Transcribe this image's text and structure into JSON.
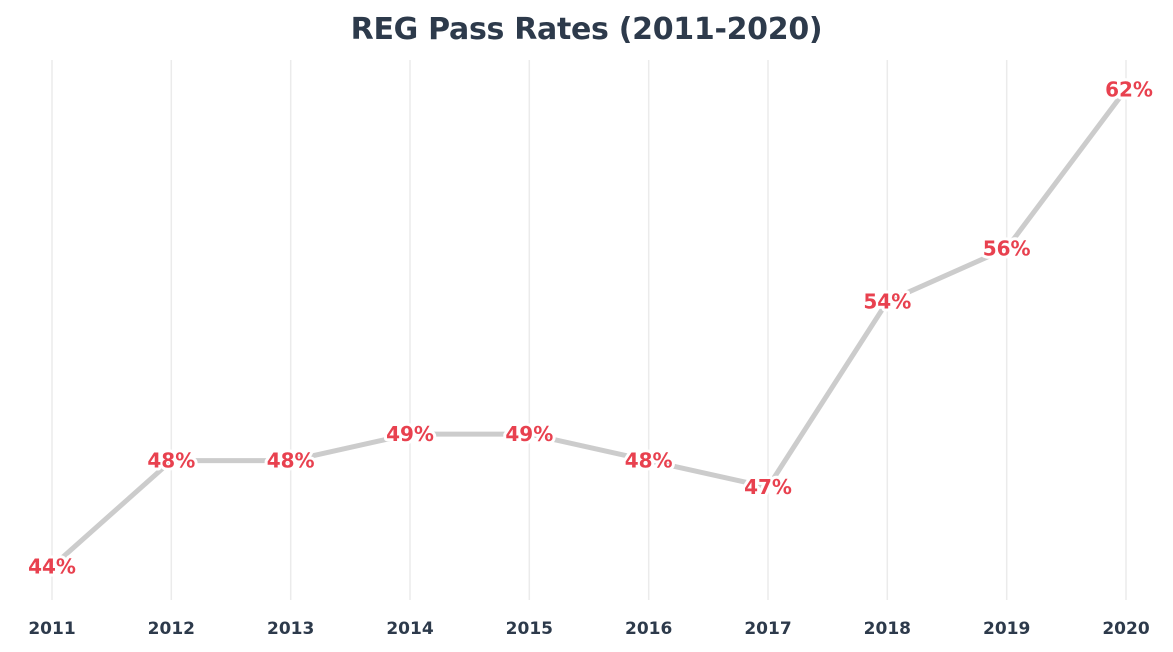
{
  "chart_data": {
    "type": "line",
    "title": "REG Pass Rates (2011-2020)",
    "xlabel": "",
    "ylabel": "",
    "categories": [
      "2011",
      "2012",
      "2013",
      "2014",
      "2015",
      "2016",
      "2017",
      "2018",
      "2019",
      "2020"
    ],
    "series": [
      {
        "values": [
          44,
          48,
          48,
          49,
          49,
          48,
          47,
          54,
          56,
          62
        ],
        "data_labels": [
          "44%",
          "48%",
          "48%",
          "49%",
          "49%",
          "48%",
          "47%",
          "54%",
          "56%",
          "62%"
        ]
      }
    ],
    "ylim": [
      43.5,
      62.5
    ],
    "grid": "vertical",
    "legend": "none"
  },
  "colors": {
    "line": "#cccccc",
    "data_label": "#e8414f",
    "grid": "#ebebeb",
    "title": "#2d3a4b",
    "tick_label": "#2d3a4b"
  }
}
